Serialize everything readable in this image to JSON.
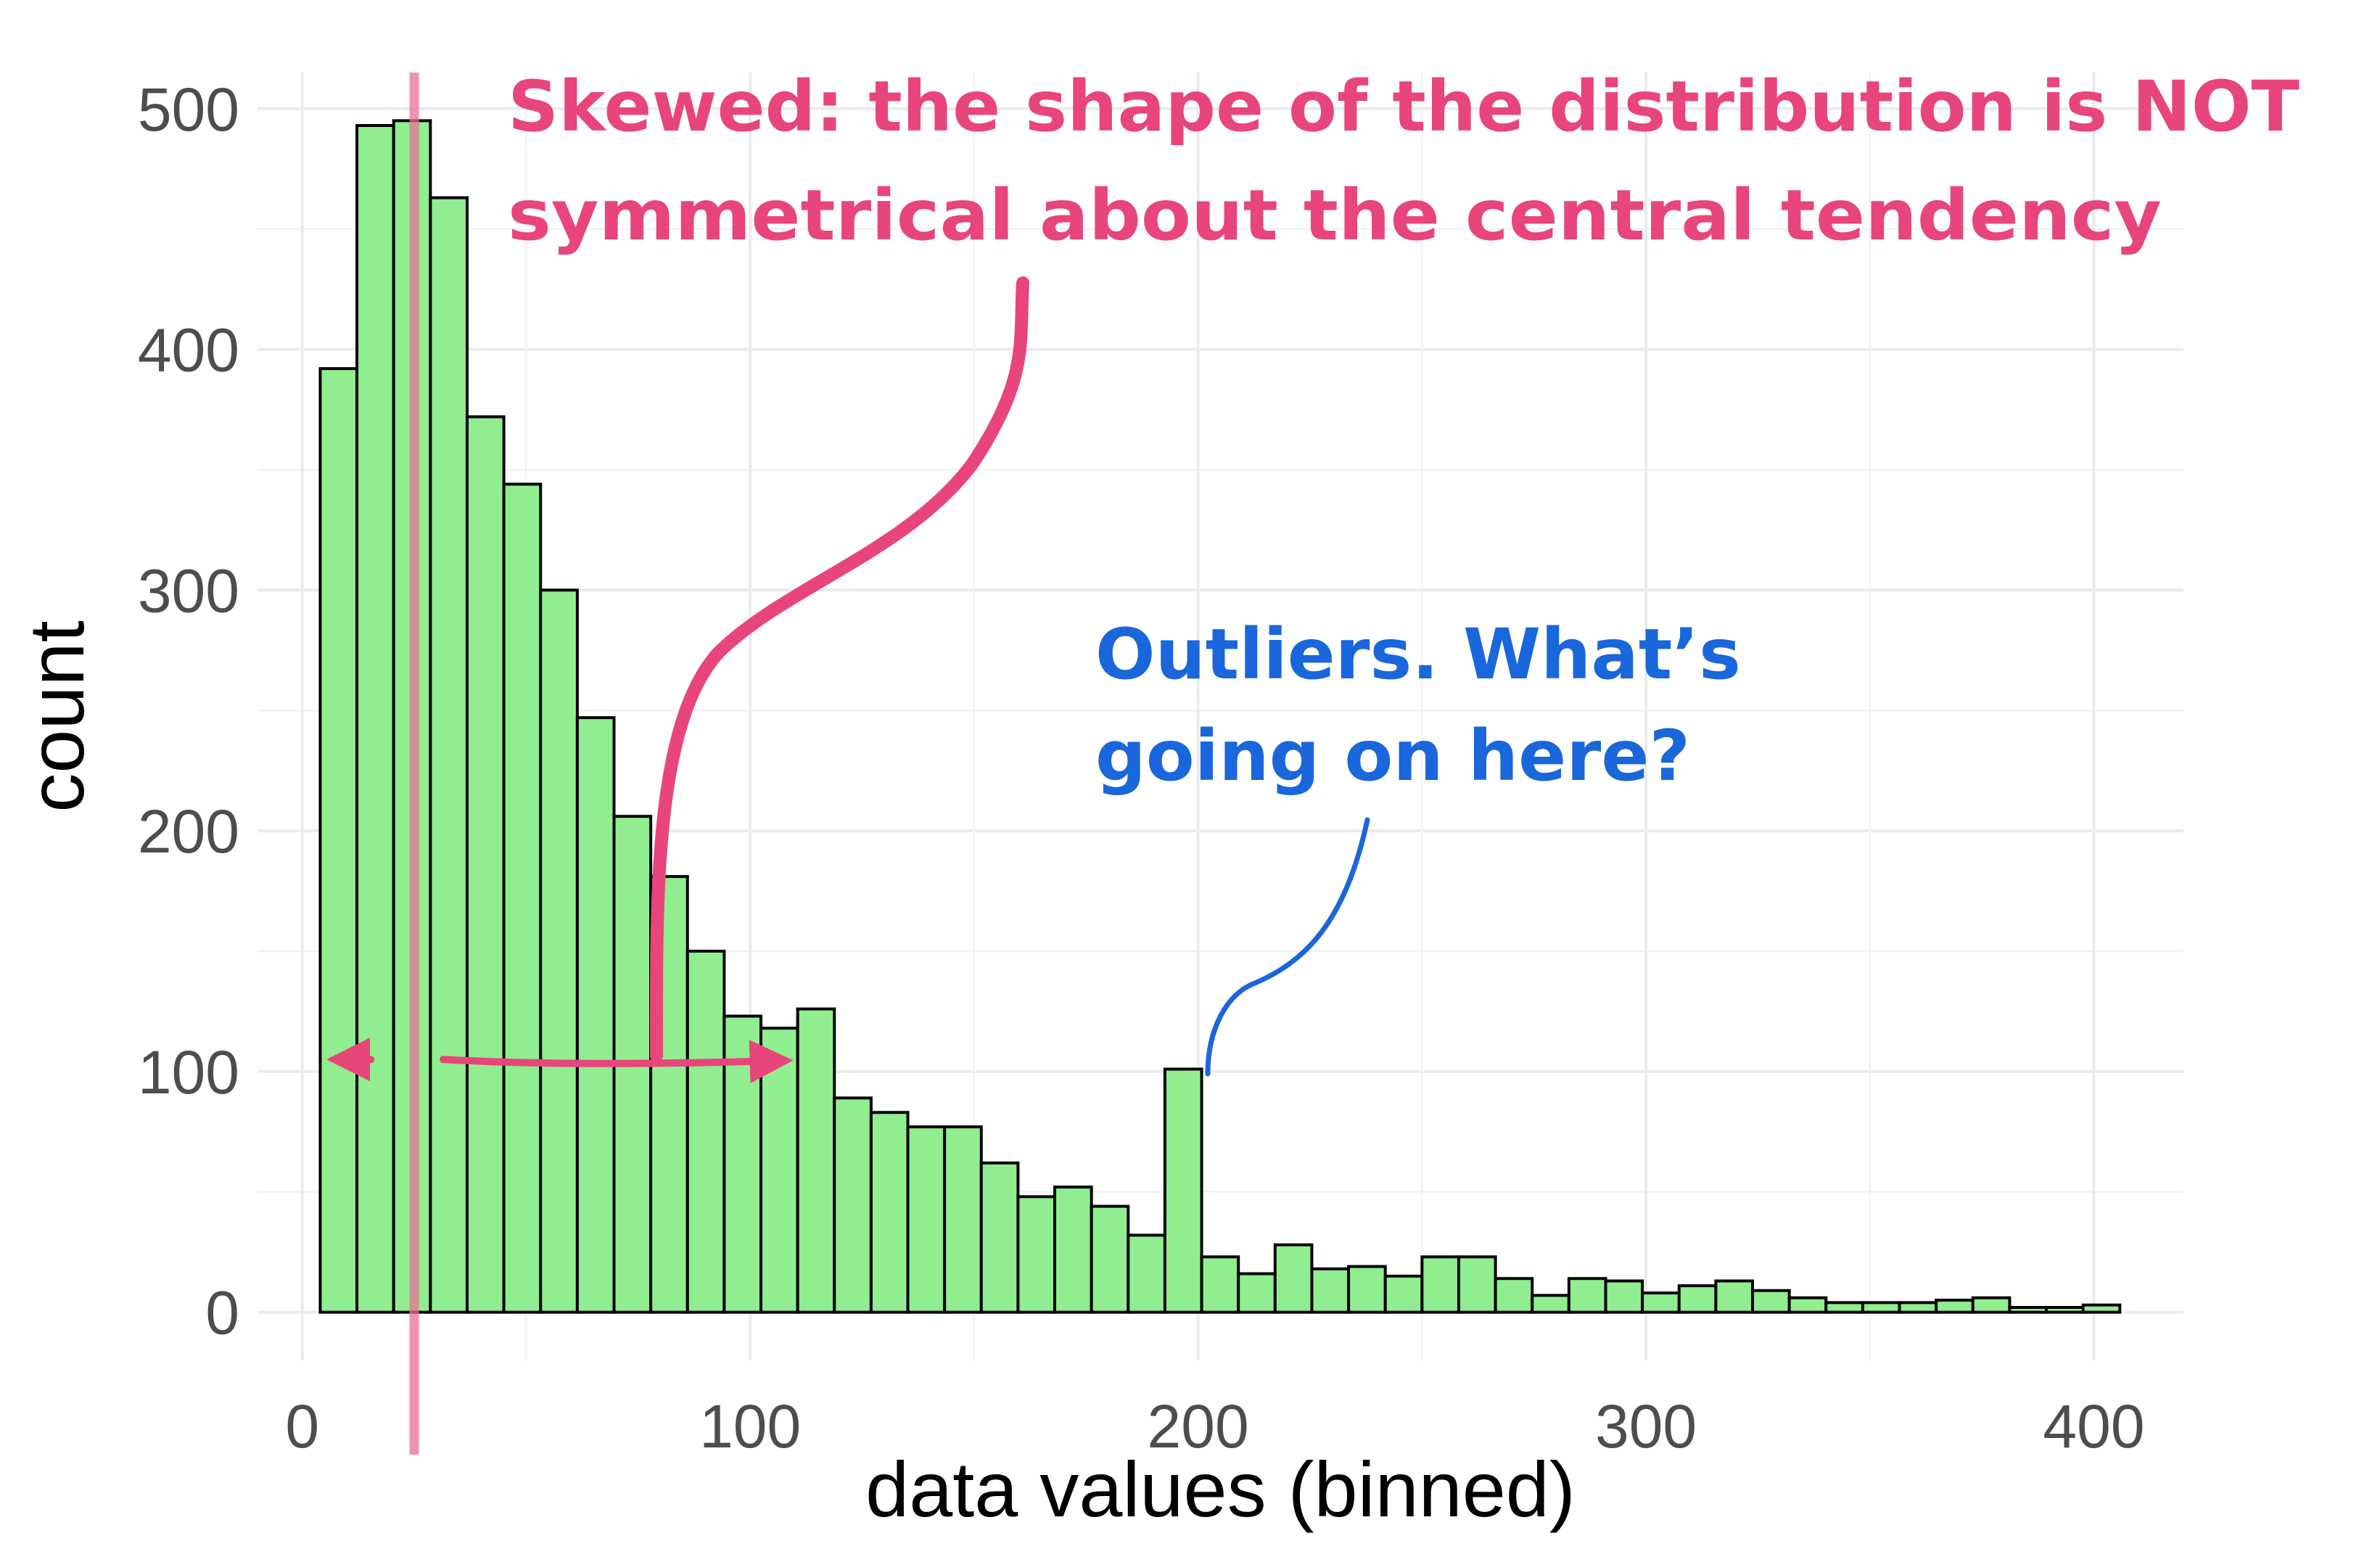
{
  "chart_data": {
    "type": "bar",
    "xlabel": "data values (binned)",
    "ylabel": "count",
    "xlim": [
      -10,
      420
    ],
    "ylim": [
      -20,
      515
    ],
    "x_ticks": [
      0,
      100,
      200,
      300,
      400
    ],
    "y_ticks": [
      0,
      100,
      200,
      300,
      400,
      500
    ],
    "grid": true,
    "bar_fill": "#90EE90",
    "bar_stroke": "#000000",
    "bin_width": 8.2,
    "bin_start": 4,
    "values": [
      392,
      493,
      495,
      463,
      372,
      344,
      300,
      247,
      206,
      181,
      150,
      123,
      118,
      126,
      89,
      83,
      77,
      77,
      62,
      48,
      52,
      44,
      32,
      101,
      23,
      16,
      28,
      18,
      19,
      15,
      23,
      23,
      14,
      7,
      14,
      13,
      8,
      11,
      13,
      9,
      6,
      4,
      4,
      4,
      5,
      6,
      2,
      2,
      3
    ],
    "reference_line": {
      "x": 25,
      "color": "#EA6F9B"
    },
    "annotations": [
      {
        "id": "skew",
        "lines": [
          "Skewed: the shape of the distribution is NOT",
          "symmetrical about the central tendency"
        ],
        "color": "#E8457A"
      },
      {
        "id": "outliers",
        "lines": [
          "Outliers. What’s",
          "going on here?"
        ],
        "color": "#1A66DB"
      }
    ]
  }
}
